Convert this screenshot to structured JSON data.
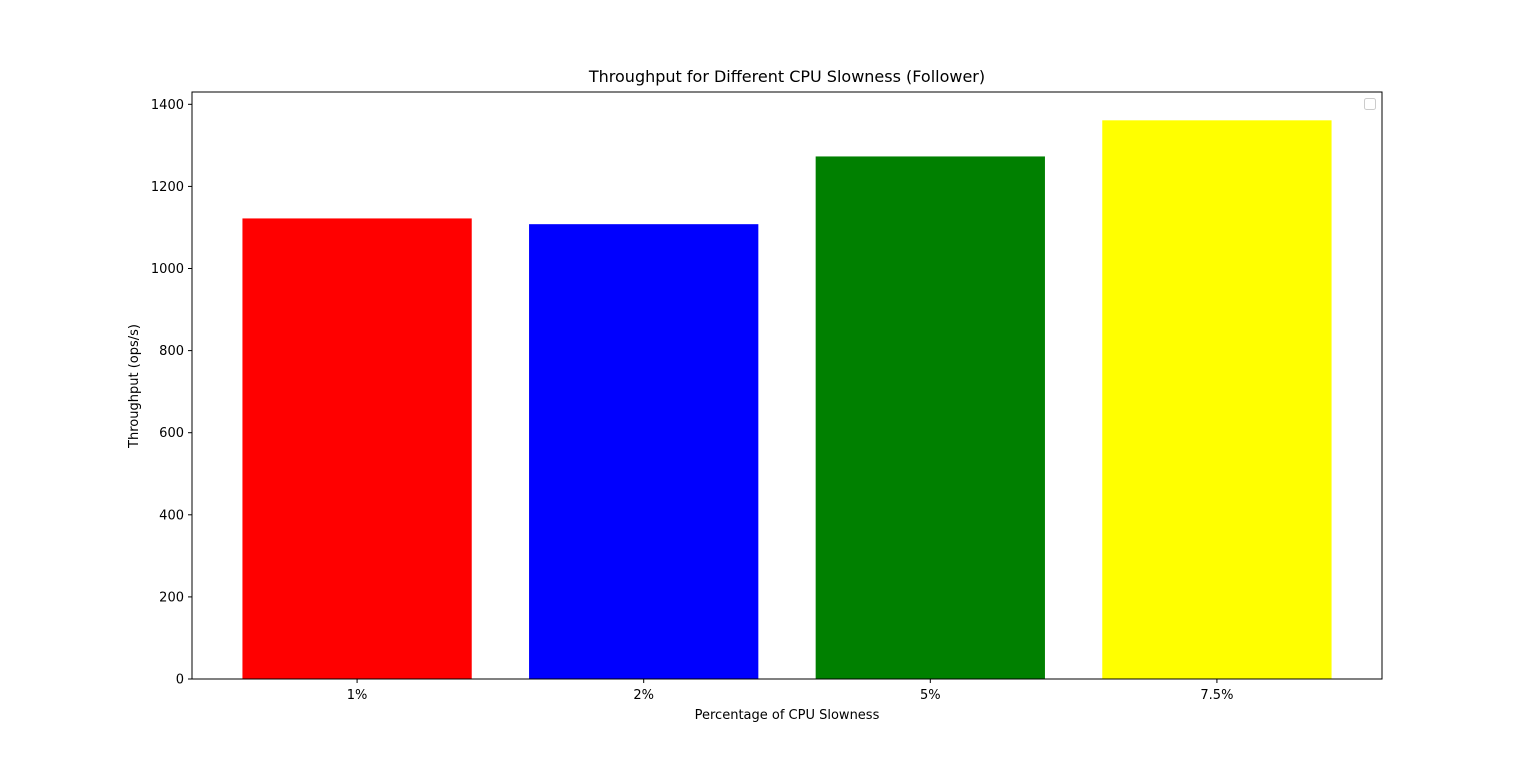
{
  "chart_data": {
    "type": "bar",
    "title": "Throughput for Different CPU Slowness (Follower)",
    "xlabel": "Percentage of CPU Slowness",
    "ylabel": "Throughput (ops/s)",
    "categories": [
      "1%",
      "2%",
      "5%",
      "7.5%"
    ],
    "values": [
      1122,
      1108,
      1273,
      1361
    ],
    "colors": [
      "#ff0000",
      "#0000ff",
      "#008000",
      "#ffff00"
    ],
    "ylim": [
      0,
      1430
    ],
    "yticks": [
      0,
      200,
      400,
      600,
      800,
      1000,
      1200,
      1400
    ],
    "grid": false,
    "legend": {
      "placement": "top-right",
      "entries": []
    }
  }
}
